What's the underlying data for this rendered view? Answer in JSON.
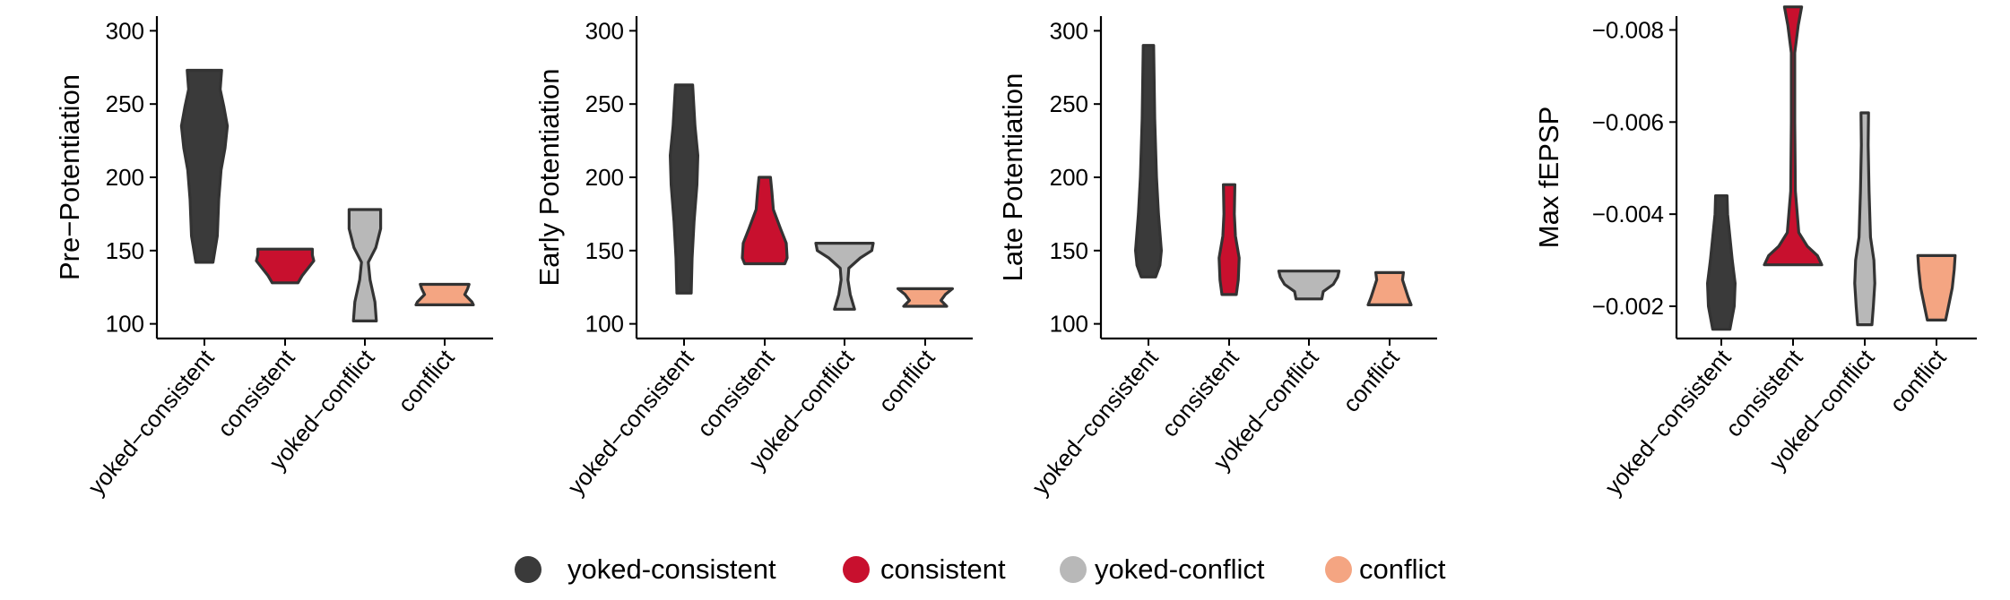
{
  "colors": {
    "yoked-consistent": "#3a3a3a",
    "consistent": "#c8102e",
    "yoked-conflict": "#b8b8b8",
    "conflict": "#f4a582",
    "outline": "#333333",
    "axis": "#000000"
  },
  "legend": {
    "placement": "bottom",
    "items": [
      {
        "label": "yoked-consistent",
        "color": "#3a3a3a"
      },
      {
        "label": "consistent",
        "color": "#c8102e"
      },
      {
        "label": "yoked-conflict",
        "color": "#b8b8b8"
      },
      {
        "label": "conflict",
        "color": "#f4a582"
      }
    ]
  },
  "chart_data": [
    {
      "type": "violin",
      "ylabel": "Pre−Potentiation",
      "categories": [
        "yoked−consistent",
        "consistent",
        "yoked−conflict",
        "conflict"
      ],
      "ylim": [
        90,
        310
      ],
      "yticks": [
        100,
        150,
        200,
        250,
        300
      ],
      "ytick_labels": [
        "100",
        "150",
        "200",
        "250",
        "300"
      ],
      "series": [
        {
          "group": "yoked-consistent",
          "profile": [
            [
              142,
              0.3
            ],
            [
              160,
              0.45
            ],
            [
              185,
              0.5
            ],
            [
              205,
              0.58
            ],
            [
              220,
              0.72
            ],
            [
              235,
              0.8
            ],
            [
              248,
              0.68
            ],
            [
              260,
              0.55
            ],
            [
              273,
              0.6
            ]
          ]
        },
        {
          "group": "consistent",
          "profile": [
            [
              128,
              0.45
            ],
            [
              133,
              0.6
            ],
            [
              138,
              0.8
            ],
            [
              143,
              1.0
            ],
            [
              147,
              0.95
            ],
            [
              151,
              0.95
            ]
          ]
        },
        {
          "group": "yoked-conflict",
          "profile": [
            [
              102,
              0.4
            ],
            [
              115,
              0.35
            ],
            [
              130,
              0.18
            ],
            [
              142,
              0.12
            ],
            [
              152,
              0.38
            ],
            [
              165,
              0.55
            ],
            [
              178,
              0.55
            ]
          ]
        },
        {
          "group": "conflict",
          "profile": [
            [
              113,
              1.0
            ],
            [
              115,
              0.95
            ],
            [
              120,
              0.7
            ],
            [
              124,
              0.8
            ],
            [
              127,
              0.85
            ]
          ]
        }
      ]
    },
    {
      "type": "violin",
      "ylabel": "Early Potentiation",
      "categories": [
        "yoked−consistent",
        "consistent",
        "yoked−conflict",
        "conflict"
      ],
      "ylim": [
        90,
        310
      ],
      "yticks": [
        100,
        150,
        200,
        250,
        300
      ],
      "ytick_labels": [
        "100",
        "150",
        "200",
        "250",
        "300"
      ],
      "series": [
        {
          "group": "yoked-consistent",
          "profile": [
            [
              121,
              0.25
            ],
            [
              145,
              0.28
            ],
            [
              170,
              0.35
            ],
            [
              195,
              0.45
            ],
            [
              215,
              0.48
            ],
            [
              235,
              0.38
            ],
            [
              263,
              0.3
            ]
          ]
        },
        {
          "group": "consistent",
          "profile": [
            [
              141,
              0.7
            ],
            [
              145,
              0.78
            ],
            [
              155,
              0.75
            ],
            [
              165,
              0.55
            ],
            [
              178,
              0.3
            ],
            [
              190,
              0.25
            ],
            [
              200,
              0.2
            ]
          ]
        },
        {
          "group": "yoked-conflict",
          "profile": [
            [
              110,
              0.35
            ],
            [
              120,
              0.2
            ],
            [
              130,
              0.12
            ],
            [
              138,
              0.15
            ],
            [
              145,
              0.55
            ],
            [
              150,
              0.95
            ],
            [
              155,
              1.0
            ]
          ]
        },
        {
          "group": "conflict",
          "profile": [
            [
              112,
              0.75
            ],
            [
              116,
              0.55
            ],
            [
              120,
              0.7
            ],
            [
              124,
              0.95
            ]
          ]
        }
      ]
    },
    {
      "type": "violin",
      "ylabel": "Late Potentiation",
      "categories": [
        "yoked−consistent",
        "consistent",
        "yoked−conflict",
        "conflict"
      ],
      "ylim": [
        90,
        310
      ],
      "yticks": [
        100,
        150,
        200,
        250,
        300
      ],
      "ytick_labels": [
        "100",
        "150",
        "200",
        "250",
        "300"
      ],
      "series": [
        {
          "group": "yoked-consistent",
          "profile": [
            [
              132,
              0.25
            ],
            [
              140,
              0.4
            ],
            [
              150,
              0.45
            ],
            [
              175,
              0.35
            ],
            [
              200,
              0.28
            ],
            [
              240,
              0.22
            ],
            [
              290,
              0.18
            ]
          ]
        },
        {
          "group": "consistent",
          "profile": [
            [
              120,
              0.25
            ],
            [
              130,
              0.32
            ],
            [
              145,
              0.35
            ],
            [
              160,
              0.22
            ],
            [
              175,
              0.18
            ],
            [
              195,
              0.2
            ]
          ]
        },
        {
          "group": "yoked-conflict",
          "profile": [
            [
              117,
              0.45
            ],
            [
              122,
              0.5
            ],
            [
              127,
              0.85
            ],
            [
              132,
              1.0
            ],
            [
              136,
              1.05
            ]
          ]
        },
        {
          "group": "conflict",
          "profile": [
            [
              113,
              0.75
            ],
            [
              118,
              0.65
            ],
            [
              124,
              0.55
            ],
            [
              130,
              0.45
            ],
            [
              135,
              0.48
            ]
          ]
        }
      ]
    },
    {
      "type": "violin",
      "ylabel": "Max fEPSP",
      "categories": [
        "yoked−consistent",
        "consistent",
        "yoked−conflict",
        "conflict"
      ],
      "ylim": [
        -0.0013,
        -0.0083
      ],
      "yticks": [
        -0.002,
        -0.004,
        -0.006,
        -0.008
      ],
      "ytick_labels": [
        "−0.002",
        "−0.004",
        "−0.006",
        "−0.008"
      ],
      "series": [
        {
          "group": "yoked-consistent",
          "profile": [
            [
              -0.0015,
              0.3
            ],
            [
              -0.002,
              0.45
            ],
            [
              -0.0025,
              0.48
            ],
            [
              -0.003,
              0.38
            ],
            [
              -0.0035,
              0.3
            ],
            [
              -0.004,
              0.22
            ],
            [
              -0.0044,
              0.2
            ]
          ]
        },
        {
          "group": "consistent",
          "profile": [
            [
              -0.0029,
              1.0
            ],
            [
              -0.0031,
              0.85
            ],
            [
              -0.0033,
              0.5
            ],
            [
              -0.0036,
              0.2
            ],
            [
              -0.0045,
              0.08
            ],
            [
              -0.006,
              0.06
            ],
            [
              -0.0075,
              0.06
            ],
            [
              -0.0081,
              0.18
            ],
            [
              -0.0085,
              0.3
            ]
          ]
        },
        {
          "group": "yoked-conflict",
          "profile": [
            [
              -0.0016,
              0.25
            ],
            [
              -0.002,
              0.3
            ],
            [
              -0.0025,
              0.35
            ],
            [
              -0.003,
              0.32
            ],
            [
              -0.0035,
              0.2
            ],
            [
              -0.0045,
              0.15
            ],
            [
              -0.0055,
              0.12
            ],
            [
              -0.0062,
              0.13
            ]
          ]
        },
        {
          "group": "conflict",
          "profile": [
            [
              -0.0017,
              0.32
            ],
            [
              -0.002,
              0.42
            ],
            [
              -0.0024,
              0.55
            ],
            [
              -0.0028,
              0.62
            ],
            [
              -0.0031,
              0.65
            ]
          ]
        }
      ]
    }
  ]
}
